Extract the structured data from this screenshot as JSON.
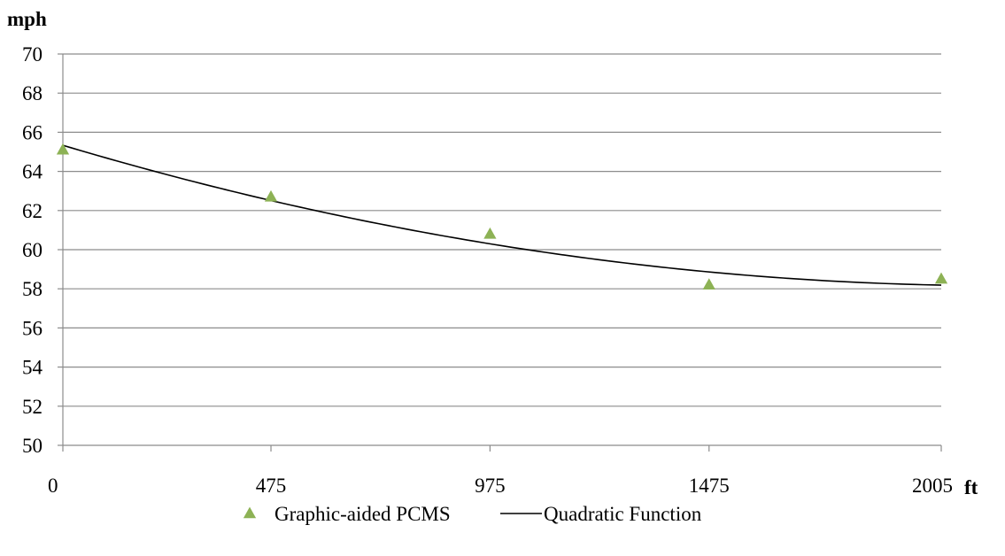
{
  "chart_data": {
    "type": "scatter",
    "y_unit_label": "mph",
    "x_unit_label": "ft",
    "ylim": [
      50,
      70
    ],
    "y_ticks": [
      50,
      52,
      54,
      56,
      58,
      60,
      62,
      64,
      66,
      68,
      70
    ],
    "x_ticks": [
      0,
      475,
      975,
      1475,
      2005
    ],
    "grid": true,
    "legend_position": "bottom",
    "series": [
      {
        "name": "Graphic-aided PCMS",
        "kind": "scatter",
        "marker": "triangle",
        "color": "#8db255",
        "x": [
          0,
          475,
          975,
          1475,
          2005
        ],
        "y": [
          65.1,
          62.7,
          60.8,
          58.2,
          58.5
        ]
      },
      {
        "name": "Quadratic Function",
        "kind": "line",
        "color": "#000000",
        "x": [
          0,
          250,
          500,
          750,
          1000,
          1250,
          1500,
          1750,
          2005
        ],
        "y": [
          65.3,
          63.8,
          62.4,
          61.2,
          60.2,
          59.4,
          58.8,
          58.4,
          58.2
        ]
      }
    ]
  }
}
